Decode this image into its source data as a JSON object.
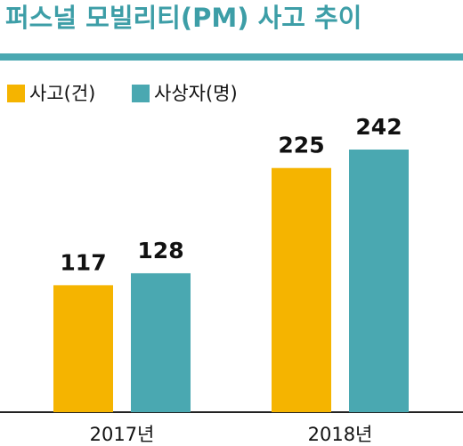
{
  "chart_data": {
    "type": "bar",
    "title": "퍼스널 모빌리티(PM) 사고 추이",
    "categories": [
      "2017년",
      "2018년"
    ],
    "series": [
      {
        "name": "사고(건)",
        "color": "#f5b400",
        "values": [
          117,
          225
        ]
      },
      {
        "name": "사상자(명)",
        "color": "#4aa8b1",
        "values": [
          128,
          242
        ]
      }
    ]
  }
}
